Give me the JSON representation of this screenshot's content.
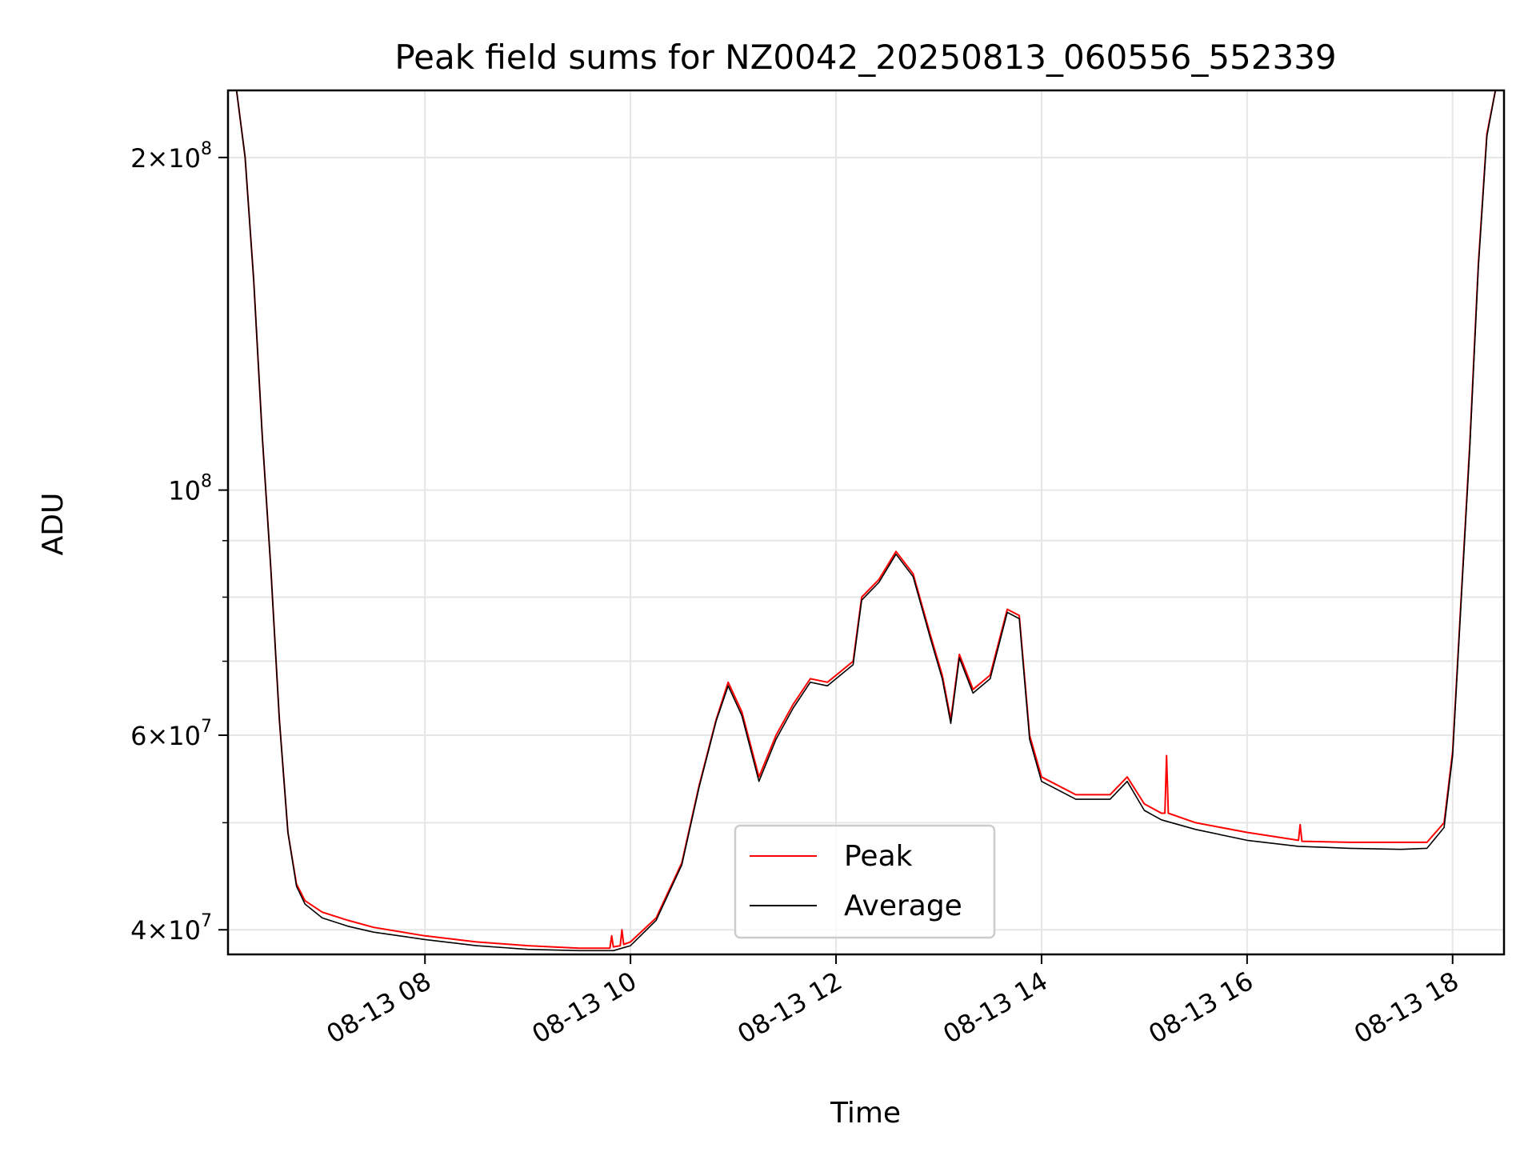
{
  "chart_data": {
    "type": "line",
    "title": "Peak field sums for NZ0042_20250813_060556_552339",
    "xlabel": "Time",
    "ylabel": "ADU",
    "y_scale": "log",
    "grid": true,
    "legend": "lower-center",
    "x_range": [
      "2025-08-13 06:05",
      "2025-08-13 18:30"
    ],
    "ylim": [
      38000000,
      230000000
    ],
    "x_ticks": [
      {
        "label": "08-13 08",
        "value": "2025-08-13 08:00"
      },
      {
        "label": "08-13 10",
        "value": "2025-08-13 10:00"
      },
      {
        "label": "08-13 12",
        "value": "2025-08-13 12:00"
      },
      {
        "label": "08-13 14",
        "value": "2025-08-13 14:00"
      },
      {
        "label": "08-13 16",
        "value": "2025-08-13 16:00"
      },
      {
        "label": "08-13 18",
        "value": "2025-08-13 18:00"
      }
    ],
    "y_ticks_major": [
      {
        "label_base": "2×10",
        "label_exp": "8",
        "value": 200000000
      },
      {
        "label_base": "10",
        "label_exp": "8",
        "value": 100000000
      },
      {
        "label_base": "6×10",
        "label_exp": "7",
        "value": 60000000
      },
      {
        "label_base": "4×10",
        "label_exp": "7",
        "value": 40000000
      }
    ],
    "y_ticks_minor": [
      90000000,
      80000000,
      70000000,
      50000000
    ],
    "series": [
      {
        "name": "Peak",
        "color": "#ff0000",
        "x": [
          "2025-08-13 06:10",
          "2025-08-13 06:15",
          "2025-08-13 06:20",
          "2025-08-13 06:25",
          "2025-08-13 06:30",
          "2025-08-13 06:35",
          "2025-08-13 06:40",
          "2025-08-13 06:45",
          "2025-08-13 06:50",
          "2025-08-13 07:00",
          "2025-08-13 07:15",
          "2025-08-13 07:30",
          "2025-08-13 08:00",
          "2025-08-13 08:30",
          "2025-08-13 09:00",
          "2025-08-13 09:30",
          "2025-08-13 09:48",
          "2025-08-13 09:49",
          "2025-08-13 09:50",
          "2025-08-13 09:54",
          "2025-08-13 09:55",
          "2025-08-13 09:56",
          "2025-08-13 10:00",
          "2025-08-13 10:15",
          "2025-08-13 10:30",
          "2025-08-13 10:40",
          "2025-08-13 10:50",
          "2025-08-13 10:57",
          "2025-08-13 11:05",
          "2025-08-13 11:15",
          "2025-08-13 11:25",
          "2025-08-13 11:35",
          "2025-08-13 11:45",
          "2025-08-13 11:55",
          "2025-08-13 12:10",
          "2025-08-13 12:15",
          "2025-08-13 12:25",
          "2025-08-13 12:35",
          "2025-08-13 12:45",
          "2025-08-13 12:55",
          "2025-08-13 13:02",
          "2025-08-13 13:07",
          "2025-08-13 13:12",
          "2025-08-13 13:20",
          "2025-08-13 13:30",
          "2025-08-13 13:40",
          "2025-08-13 13:47",
          "2025-08-13 13:53",
          "2025-08-13 14:00",
          "2025-08-13 14:20",
          "2025-08-13 14:40",
          "2025-08-13 14:50",
          "2025-08-13 15:00",
          "2025-08-13 15:10",
          "2025-08-13 15:12",
          "2025-08-13 15:13",
          "2025-08-13 15:14",
          "2025-08-13 15:30",
          "2025-08-13 16:00",
          "2025-08-13 16:30",
          "2025-08-13 16:31",
          "2025-08-13 16:32",
          "2025-08-13 17:00",
          "2025-08-13 17:30",
          "2025-08-13 17:45",
          "2025-08-13 17:55",
          "2025-08-13 18:00",
          "2025-08-13 18:05",
          "2025-08-13 18:10",
          "2025-08-13 18:15",
          "2025-08-13 18:20",
          "2025-08-13 18:25"
        ],
        "values": [
          230000000,
          200000000,
          155000000,
          112000000,
          85000000,
          62000000,
          49000000,
          44000000,
          42500000,
          41500000,
          40800000,
          40200000,
          39500000,
          39000000,
          38700000,
          38500000,
          38500000,
          39500000,
          38600000,
          38700000,
          40000000,
          38800000,
          39000000,
          41000000,
          46000000,
          54000000,
          62000000,
          67000000,
          63000000,
          55000000,
          60000000,
          64000000,
          67500000,
          67000000,
          70000000,
          80000000,
          83000000,
          88000000,
          84000000,
          74000000,
          68000000,
          62000000,
          71000000,
          66000000,
          68000000,
          78000000,
          77000000,
          60000000,
          55000000,
          53000000,
          53000000,
          55000000,
          52000000,
          51000000,
          51000000,
          57500000,
          51000000,
          50000000,
          49000000,
          48200000,
          49800000,
          48100000,
          48000000,
          48000000,
          48000000,
          50000000,
          58000000,
          80000000,
          110000000,
          160000000,
          210000000,
          230000000
        ]
      },
      {
        "name": "Average",
        "color": "#000000",
        "x": [
          "2025-08-13 06:10",
          "2025-08-13 06:15",
          "2025-08-13 06:20",
          "2025-08-13 06:25",
          "2025-08-13 06:30",
          "2025-08-13 06:35",
          "2025-08-13 06:40",
          "2025-08-13 06:45",
          "2025-08-13 06:50",
          "2025-08-13 07:00",
          "2025-08-13 07:15",
          "2025-08-13 07:30",
          "2025-08-13 08:00",
          "2025-08-13 08:30",
          "2025-08-13 09:00",
          "2025-08-13 09:30",
          "2025-08-13 09:50",
          "2025-08-13 10:00",
          "2025-08-13 10:15",
          "2025-08-13 10:30",
          "2025-08-13 10:40",
          "2025-08-13 10:50",
          "2025-08-13 10:57",
          "2025-08-13 11:05",
          "2025-08-13 11:15",
          "2025-08-13 11:25",
          "2025-08-13 11:35",
          "2025-08-13 11:45",
          "2025-08-13 11:55",
          "2025-08-13 12:10",
          "2025-08-13 12:15",
          "2025-08-13 12:25",
          "2025-08-13 12:35",
          "2025-08-13 12:45",
          "2025-08-13 12:55",
          "2025-08-13 13:02",
          "2025-08-13 13:07",
          "2025-08-13 13:12",
          "2025-08-13 13:20",
          "2025-08-13 13:30",
          "2025-08-13 13:40",
          "2025-08-13 13:47",
          "2025-08-13 13:53",
          "2025-08-13 14:00",
          "2025-08-13 14:20",
          "2025-08-13 14:40",
          "2025-08-13 14:50",
          "2025-08-13 15:00",
          "2025-08-13 15:10",
          "2025-08-13 15:30",
          "2025-08-13 16:00",
          "2025-08-13 16:30",
          "2025-08-13 17:00",
          "2025-08-13 17:30",
          "2025-08-13 17:45",
          "2025-08-13 17:55",
          "2025-08-13 18:00",
          "2025-08-13 18:05",
          "2025-08-13 18:10",
          "2025-08-13 18:15",
          "2025-08-13 18:20",
          "2025-08-13 18:25"
        ],
        "values": [
          230000000,
          200000000,
          155000000,
          112000000,
          85000000,
          62000000,
          49000000,
          43800000,
          42200000,
          41000000,
          40300000,
          39800000,
          39200000,
          38700000,
          38400000,
          38300000,
          38300000,
          38700000,
          40800000,
          45800000,
          53800000,
          61800000,
          66500000,
          62500000,
          54500000,
          59500000,
          63500000,
          67000000,
          66500000,
          69500000,
          79500000,
          82500000,
          87500000,
          83500000,
          73500000,
          67500000,
          61500000,
          70500000,
          65500000,
          67500000,
          77500000,
          76500000,
          59500000,
          54500000,
          52500000,
          52500000,
          54500000,
          51300000,
          50300000,
          49300000,
          48200000,
          47600000,
          47400000,
          47300000,
          47400000,
          49500000,
          57500000,
          79500000,
          109000000,
          159000000,
          209000000,
          230000000
        ]
      }
    ]
  }
}
